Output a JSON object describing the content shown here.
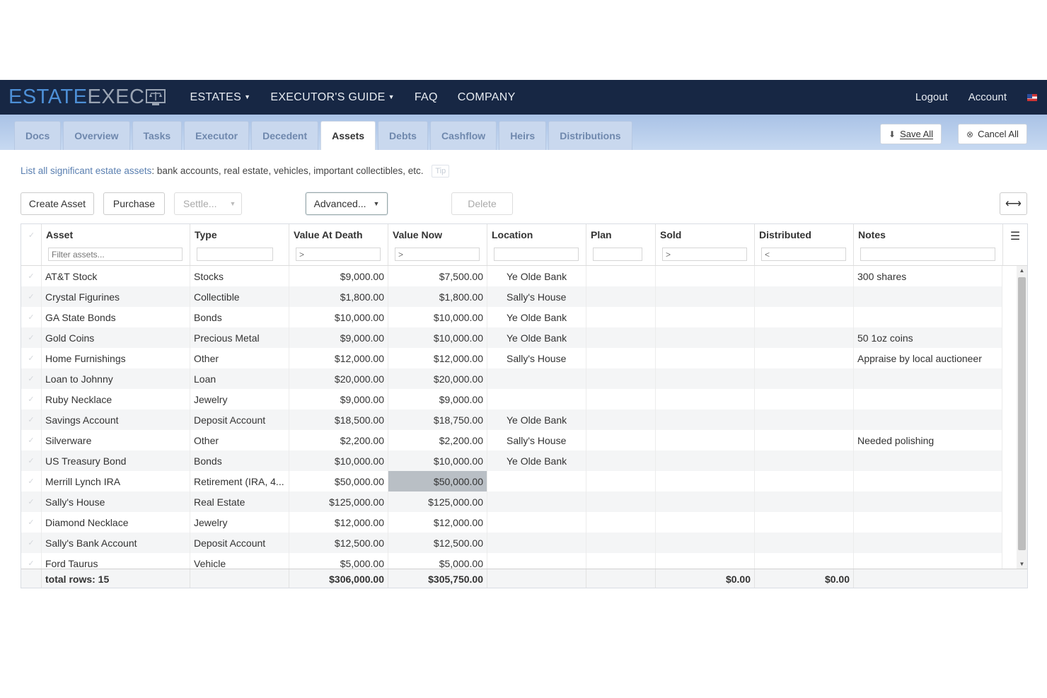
{
  "brand": {
    "part1": "ESTATE",
    "part2": "EXEC"
  },
  "nav": {
    "items": [
      {
        "label": "ESTATES",
        "dropdown": true
      },
      {
        "label": "EXECUTOR'S GUIDE",
        "dropdown": true
      },
      {
        "label": "FAQ",
        "dropdown": false
      },
      {
        "label": "COMPANY",
        "dropdown": false
      }
    ],
    "logout": "Logout",
    "account": "Account"
  },
  "tabs": [
    "Docs",
    "Overview",
    "Tasks",
    "Executor",
    "Decedent",
    "Assets",
    "Debts",
    "Cashflow",
    "Heirs",
    "Distributions"
  ],
  "active_tab": "Assets",
  "actions": {
    "save_all": "Save All",
    "cancel_all": "Cancel All"
  },
  "hint": {
    "highlight": "List all significant estate assets",
    "rest": ": bank accounts, real estate, vehicles, important collectibles, etc.",
    "tip": "Tip"
  },
  "toolbar": {
    "create": "Create Asset",
    "purchase": "Purchase",
    "settle": "Settle...",
    "advanced": "Advanced...",
    "delete": "Delete",
    "expand_icon": "⟷"
  },
  "columns": [
    "Asset",
    "Type",
    "Value At Death",
    "Value Now",
    "Location",
    "Plan",
    "Sold",
    "Distributed",
    "Notes"
  ],
  "filters": {
    "asset": "Filter assets...",
    "value_death": ">",
    "value_now": ">",
    "sold": ">",
    "distributed": "<"
  },
  "rows": [
    {
      "asset": "AT&T Stock",
      "type": "Stocks",
      "death": "$9,000.00",
      "now": "$7,500.00",
      "location": "Ye Olde Bank",
      "notes": "300 shares"
    },
    {
      "asset": "Crystal Figurines",
      "type": "Collectible",
      "death": "$1,800.00",
      "now": "$1,800.00",
      "location": "Sally's House",
      "notes": ""
    },
    {
      "asset": "GA State Bonds",
      "type": "Bonds",
      "death": "$10,000.00",
      "now": "$10,000.00",
      "location": "Ye Olde Bank",
      "notes": ""
    },
    {
      "asset": "Gold Coins",
      "type": "Precious Metal",
      "death": "$9,000.00",
      "now": "$10,000.00",
      "location": "Ye Olde Bank",
      "notes": "50 1oz coins"
    },
    {
      "asset": "Home Furnishings",
      "type": "Other",
      "death": "$12,000.00",
      "now": "$12,000.00",
      "location": "Sally's House",
      "notes": "Appraise by local auctioneer"
    },
    {
      "asset": "Loan to Johnny",
      "type": "Loan",
      "death": "$20,000.00",
      "now": "$20,000.00",
      "location": "",
      "notes": ""
    },
    {
      "asset": "Ruby Necklace",
      "type": "Jewelry",
      "death": "$9,000.00",
      "now": "$9,000.00",
      "location": "",
      "notes": ""
    },
    {
      "asset": "Savings Account",
      "type": "Deposit Account",
      "death": "$18,500.00",
      "now": "$18,750.00",
      "location": "Ye Olde Bank",
      "notes": ""
    },
    {
      "asset": "Silverware",
      "type": "Other",
      "death": "$2,200.00",
      "now": "$2,200.00",
      "location": "Sally's House",
      "notes": "Needed polishing"
    },
    {
      "asset": "US Treasury Bond",
      "type": "Bonds",
      "death": "$10,000.00",
      "now": "$10,000.00",
      "location": "Ye Olde Bank",
      "notes": ""
    },
    {
      "asset": "Merrill Lynch IRA",
      "type": "Retirement (IRA, 4...",
      "death": "$50,000.00",
      "now": "$50,000.00",
      "location": "",
      "notes": ""
    },
    {
      "asset": "Sally's House",
      "type": "Real Estate",
      "death": "$125,000.00",
      "now": "$125,000.00",
      "location": "",
      "notes": ""
    },
    {
      "asset": "Diamond Necklace",
      "type": "Jewelry",
      "death": "$12,000.00",
      "now": "$12,000.00",
      "location": "",
      "notes": ""
    },
    {
      "asset": "Sally's Bank Account",
      "type": "Deposit Account",
      "death": "$12,500.00",
      "now": "$12,500.00",
      "location": "",
      "notes": ""
    },
    {
      "asset": "Ford Taurus",
      "type": "Vehicle",
      "death": "$5,000.00",
      "now": "$5,000.00",
      "location": "",
      "notes": ""
    }
  ],
  "highlighted_cell": {
    "row": 10,
    "column": "Value Now"
  },
  "totals": {
    "label": "total rows: 15",
    "death": "$306,000.00",
    "now": "$305,750.00",
    "sold": "$0.00",
    "distributed": "$0.00"
  }
}
